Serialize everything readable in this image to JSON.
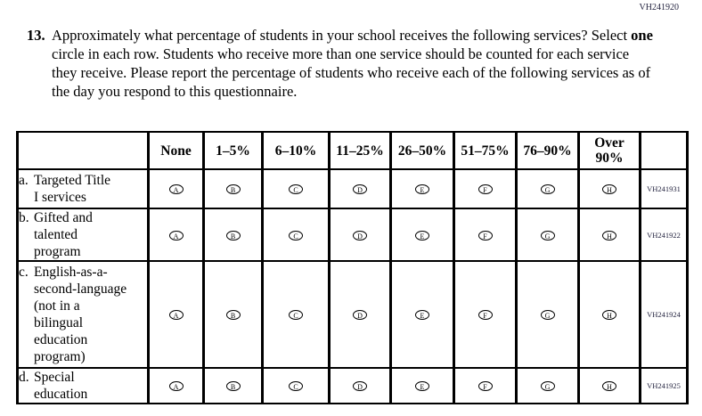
{
  "page_code": "VH241920",
  "question": {
    "number": "13.",
    "text_before_bold": "Approximately what percentage of students in your school receives the following services? Select ",
    "bold_word": "one",
    "text_after_bold": " circle in each row. Students who receive more than one service should be counted for each service they receive. Please report the percentage of students who receive each of the following services as of the day you respond to this questionnaire."
  },
  "table": {
    "column_headers": [
      "None",
      "1–5%",
      "6–10%",
      "11–25%",
      "26–50%",
      "51–75%",
      "76–90%",
      "Over 90%"
    ],
    "answer_letters": [
      "A",
      "B",
      "C",
      "D",
      "E",
      "F",
      "G",
      "H"
    ],
    "rows": [
      {
        "letter": "a.",
        "label_lines": [
          "Targeted Title",
          "I services"
        ],
        "code": "VH241931"
      },
      {
        "letter": "b.",
        "label_lines": [
          "Gifted and",
          "talented",
          "program"
        ],
        "code": "VH241922"
      },
      {
        "letter": "c.",
        "label_lines": [
          "English-as-a-",
          "second-language",
          "(not in a",
          "bilingual",
          "education",
          "program)"
        ],
        "code": "VH241924"
      },
      {
        "letter": "d.",
        "label_lines": [
          "Special",
          "education"
        ],
        "code": "VH241925"
      }
    ]
  }
}
